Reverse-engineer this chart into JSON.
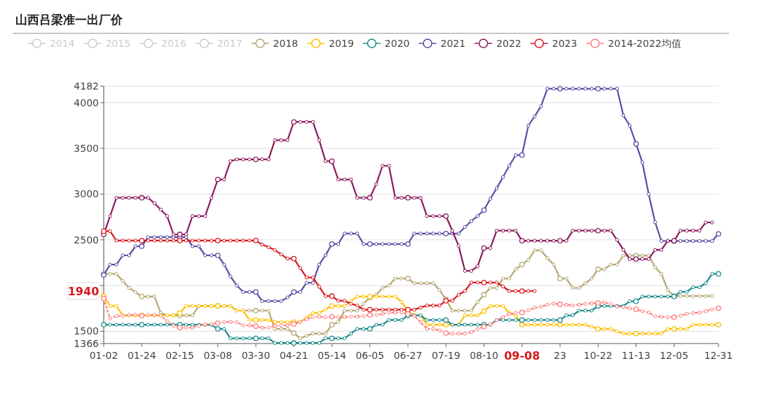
{
  "chart_data": {
    "type": "line",
    "title": "山西吕梁准一出厂价",
    "categories": [
      "01-02",
      null,
      null,
      null,
      null,
      null,
      "01-24",
      null,
      null,
      null,
      null,
      null,
      "02-15",
      null,
      null,
      null,
      null,
      null,
      "03-08",
      null,
      null,
      null,
      null,
      null,
      "03-30",
      null,
      null,
      null,
      null,
      null,
      "04-21",
      null,
      null,
      null,
      null,
      null,
      "05-14",
      null,
      null,
      null,
      null,
      null,
      "06-05",
      null,
      null,
      null,
      null,
      null,
      "06-27",
      null,
      null,
      null,
      null,
      null,
      "07-19",
      null,
      null,
      null,
      null,
      null,
      "08-10",
      null,
      null,
      null,
      null,
      null,
      null,
      null,
      null,
      null,
      null,
      null,
      "23",
      null,
      null,
      null,
      null,
      null,
      "10-22",
      null,
      null,
      null,
      null,
      null,
      "11-13",
      null,
      null,
      null,
      null,
      null,
      "12-05",
      null,
      null,
      null,
      null,
      null,
      null,
      "12-31"
    ],
    "ylim": [
      1366,
      4182
    ],
    "yticks": [
      1366,
      1500,
      {
        "value": 2000,
        "label": null
      },
      2500,
      3000,
      3500,
      4000,
      4182
    ],
    "grid": "y",
    "legend": "top",
    "marker": "circle",
    "annotations": [
      "1940",
      "09-08"
    ],
    "series": [
      {
        "name": "2014",
        "color": "#cccccc",
        "values": [
          null,
          null,
          null,
          null,
          null,
          null,
          null,
          null,
          null,
          null,
          null,
          null,
          null,
          null,
          null,
          null,
          null,
          null,
          null,
          null,
          null,
          null,
          null,
          null,
          null,
          null,
          null,
          null,
          null,
          null,
          null,
          null,
          null,
          null,
          null,
          null,
          null,
          null,
          null,
          null,
          null,
          null,
          null,
          null,
          null,
          null,
          null,
          null,
          null,
          null,
          null,
          null,
          null,
          null,
          null,
          null,
          null,
          null,
          null,
          null,
          null,
          null,
          null,
          null,
          null,
          null,
          null,
          null,
          null,
          null,
          null,
          null,
          null,
          null,
          null,
          null,
          null,
          null,
          null,
          null,
          null,
          null,
          null,
          null,
          null,
          null,
          null,
          null,
          null,
          null,
          null,
          null,
          null,
          null,
          null,
          null,
          null,
          null
        ]
      },
      {
        "name": "2015",
        "color": "#cccccc",
        "values": [
          null,
          null,
          null,
          null,
          null,
          null,
          null,
          null,
          null,
          null,
          null,
          null,
          null,
          null,
          null,
          null,
          null,
          null,
          null,
          null,
          null,
          null,
          null,
          null,
          null,
          null,
          null,
          null,
          null,
          null,
          null,
          null,
          null,
          null,
          null,
          null,
          null,
          null,
          null,
          null,
          null,
          null,
          null,
          null,
          null,
          null,
          null,
          null,
          null,
          null,
          null,
          null,
          null,
          null,
          null,
          null,
          null,
          null,
          null,
          null,
          null,
          null,
          null,
          null,
          null,
          null,
          null,
          null,
          null,
          null,
          null,
          null,
          null,
          null,
          null,
          null,
          null,
          null,
          null,
          null,
          null,
          null,
          null,
          null,
          null,
          null,
          null,
          null,
          null,
          null,
          null,
          null,
          null,
          null,
          null,
          null,
          null,
          null
        ]
      },
      {
        "name": "2016",
        "color": "#cccccc",
        "values": [
          null,
          null,
          null,
          null,
          null,
          null,
          null,
          null,
          null,
          null,
          null,
          null,
          null,
          null,
          null,
          null,
          null,
          null,
          null,
          null,
          null,
          null,
          null,
          null,
          null,
          null,
          null,
          null,
          null,
          null,
          null,
          null,
          null,
          null,
          null,
          null,
          null,
          null,
          null,
          null,
          null,
          null,
          null,
          null,
          null,
          null,
          null,
          null,
          null,
          null,
          null,
          null,
          null,
          null,
          null,
          null,
          null,
          null,
          null,
          null,
          null,
          null,
          null,
          null,
          null,
          null,
          null,
          null,
          null,
          null,
          null,
          null,
          null,
          null,
          null,
          null,
          null,
          null,
          null,
          null,
          null,
          null,
          null,
          null,
          null,
          null,
          null,
          null,
          null,
          null,
          null,
          null,
          null,
          null,
          null,
          null,
          null,
          null
        ]
      },
      {
        "name": "2017",
        "color": "#cccccc",
        "values": [
          null,
          null,
          null,
          null,
          null,
          null,
          null,
          null,
          null,
          null,
          null,
          null,
          null,
          null,
          null,
          null,
          null,
          null,
          null,
          null,
          null,
          null,
          null,
          null,
          null,
          null,
          null,
          null,
          null,
          null,
          null,
          null,
          null,
          null,
          null,
          null,
          null,
          null,
          null,
          null,
          null,
          null,
          null,
          null,
          null,
          null,
          null,
          null,
          null,
          null,
          null,
          null,
          null,
          null,
          null,
          null,
          null,
          null,
          null,
          null,
          null,
          null,
          null,
          null,
          null,
          null,
          null,
          null,
          null,
          null,
          null,
          null,
          null,
          null,
          null,
          null,
          null,
          null,
          null,
          null,
          null,
          null,
          null,
          null,
          null,
          null,
          null,
          null,
          null,
          null,
          null,
          null,
          null,
          null,
          null,
          null,
          null,
          null
        ]
      },
      {
        "name": "2018",
        "color": "#b5a672",
        "values": [
          2128,
          2128,
          2128,
          2050,
          1974,
          1930,
          1880,
          1880,
          1880,
          1700,
          1674,
          1674,
          1674,
          1674,
          1674,
          1777,
          1777,
          1777,
          1777,
          1777,
          1777,
          1726,
          1726,
          1726,
          1726,
          1726,
          1726,
          1526,
          1526,
          1526,
          1480,
          1423,
          1450,
          1474,
          1474,
          1474,
          1572,
          1600,
          1726,
          1726,
          1726,
          1800,
          1870,
          1900,
          1974,
          2000,
          2077,
          2077,
          2077,
          2026,
          2026,
          2026,
          2026,
          1950,
          1850,
          1726,
          1726,
          1726,
          1726,
          1820,
          1900,
          1974,
          1974,
          2077,
          2077,
          2179,
          2230,
          2282,
          2385,
          2385,
          2300,
          2230,
          2077,
          2077,
          1974,
          1974,
          2026,
          2077,
          2179,
          2179,
          2230,
          2230,
          2328,
          2328,
          2328,
          2328,
          2328,
          2200,
          2128,
          1950,
          1885,
          1885,
          1885,
          1885,
          1885,
          1885,
          1885,
          null
        ]
      },
      {
        "name": "2019",
        "color": "#ffc000",
        "values": [
          1885,
          1777,
          1777,
          1674,
          1674,
          1674,
          1674,
          1674,
          1674,
          1674,
          1674,
          1674,
          1700,
          1777,
          1777,
          1777,
          1777,
          1777,
          1777,
          1777,
          1777,
          1726,
          1726,
          1623,
          1623,
          1623,
          1623,
          1600,
          1600,
          1600,
          1600,
          1600,
          1650,
          1700,
          1700,
          1740,
          1777,
          1777,
          1777,
          1830,
          1880,
          1880,
          1880,
          1880,
          1880,
          1880,
          1880,
          1820,
          1720,
          1674,
          1674,
          1572,
          1572,
          1572,
          1572,
          1572,
          1572,
          1674,
          1674,
          1674,
          1720,
          1777,
          1777,
          1777,
          1700,
          1674,
          1572,
          1572,
          1572,
          1572,
          1572,
          1572,
          1572,
          1572,
          1572,
          1572,
          1572,
          1550,
          1526,
          1526,
          1526,
          1500,
          1474,
          1474,
          1474,
          1474,
          1474,
          1474,
          1474,
          1526,
          1526,
          1526,
          1526,
          1572,
          1572,
          1572,
          1572,
          1572
        ]
      },
      {
        "name": "2020",
        "color": "#1b8a8c",
        "values": [
          1572,
          1572,
          1572,
          1572,
          1572,
          1572,
          1572,
          1572,
          1572,
          1572,
          1572,
          1572,
          1572,
          1572,
          1572,
          1572,
          1572,
          1572,
          1526,
          1526,
          1423,
          1423,
          1423,
          1423,
          1423,
          1423,
          1423,
          1372,
          1372,
          1372,
          1372,
          1372,
          1372,
          1372,
          1372,
          1423,
          1423,
          1423,
          1423,
          1474,
          1526,
          1526,
          1526,
          1572,
          1572,
          1623,
          1623,
          1623,
          1674,
          1674,
          1674,
          1623,
          1623,
          1623,
          1623,
          1572,
          1572,
          1572,
          1572,
          1572,
          1572,
          1572,
          1623,
          1623,
          1623,
          1623,
          1623,
          1623,
          1623,
          1623,
          1623,
          1623,
          1623,
          1674,
          1674,
          1726,
          1726,
          1726,
          1777,
          1777,
          1777,
          1777,
          1777,
          1828,
          1828,
          1880,
          1880,
          1880,
          1880,
          1880,
          1880,
          1931,
          1931,
          1982,
          1982,
          2026,
          2128,
          2128
        ]
      },
      {
        "name": "2021",
        "color": "#5b4ba3",
        "values": [
          2115,
          2230,
          2230,
          2330,
          2330,
          2430,
          2430,
          2530,
          2530,
          2530,
          2530,
          2530,
          2530,
          2530,
          2430,
          2430,
          2330,
          2330,
          2330,
          2230,
          2100,
          2000,
          1930,
          1930,
          1930,
          1830,
          1830,
          1830,
          1830,
          1870,
          1930,
          1930,
          2030,
          2030,
          2230,
          2330,
          2454,
          2454,
          2569,
          2569,
          2569,
          2454,
          2454,
          2454,
          2454,
          2454,
          2454,
          2454,
          2454,
          2569,
          2569,
          2569,
          2569,
          2569,
          2569,
          2569,
          2569,
          2640,
          2705,
          2760,
          2825,
          2948,
          3064,
          3187,
          3310,
          3427,
          3427,
          3750,
          3850,
          3961,
          4153,
          4153,
          4153,
          4153,
          4153,
          4153,
          4153,
          4153,
          4153,
          4153,
          4153,
          4153,
          3860,
          3750,
          3550,
          3346,
          3000,
          2694,
          2487,
          2487,
          2487,
          2487,
          2487,
          2487,
          2487,
          2487,
          2487,
          2565
        ]
      },
      {
        "name": "2022",
        "color": "#8b1a5e",
        "values": [
          2560,
          2760,
          2960,
          2960,
          2960,
          2960,
          2960,
          2960,
          2900,
          2830,
          2760,
          2560,
          2560,
          2560,
          2760,
          2760,
          2760,
          2960,
          3160,
          3160,
          3360,
          3380,
          3380,
          3380,
          3380,
          3380,
          3380,
          3590,
          3590,
          3590,
          3790,
          3790,
          3790,
          3790,
          3590,
          3360,
          3360,
          3160,
          3160,
          3160,
          2960,
          2960,
          2960,
          3110,
          3310,
          3310,
          2960,
          2960,
          2960,
          2960,
          2960,
          2760,
          2760,
          2760,
          2760,
          2600,
          2435,
          2160,
          2160,
          2210,
          2410,
          2410,
          2600,
          2600,
          2600,
          2600,
          2490,
          2490,
          2490,
          2490,
          2490,
          2490,
          2490,
          2490,
          2600,
          2600,
          2600,
          2600,
          2600,
          2600,
          2600,
          2500,
          2390,
          2290,
          2290,
          2290,
          2290,
          2390,
          2390,
          2490,
          2490,
          2600,
          2600,
          2600,
          2600,
          2690,
          2690,
          null
        ]
      },
      {
        "name": "2023",
        "color": "#d7191c",
        "values": [
          2595,
          2595,
          2492,
          2492,
          2492,
          2492,
          2492,
          2492,
          2492,
          2492,
          2492,
          2492,
          2492,
          2492,
          2492,
          2492,
          2492,
          2492,
          2492,
          2492,
          2492,
          2492,
          2492,
          2492,
          2492,
          2448,
          2420,
          2389,
          2340,
          2295,
          2295,
          2192,
          2088,
          2088,
          1987,
          1885,
          1885,
          1834,
          1834,
          1800,
          1782,
          1736,
          1736,
          1736,
          1736,
          1736,
          1736,
          1736,
          1736,
          1736,
          1760,
          1782,
          1782,
          1782,
          1834,
          1834,
          1900,
          1940,
          2033,
          2033,
          2033,
          2033,
          2033,
          1990,
          1940,
          1940,
          1940,
          1940,
          1940,
          null,
          null,
          null,
          null,
          null,
          null,
          null,
          null,
          null,
          null,
          null,
          null,
          null,
          null,
          null,
          null,
          null,
          null,
          null,
          null,
          null,
          null,
          null,
          null,
          null,
          null,
          null,
          null,
          null
        ]
      },
      {
        "name": "2014-2022均值",
        "color": "#ff7b7b",
        "line_style": "dotted",
        "values": [
          1859,
          1640,
          1667,
          1667,
          1680,
          1680,
          1670,
          1680,
          1680,
          1670,
          1610,
          1560,
          1540,
          1538,
          1540,
          1560,
          1577,
          1580,
          1590,
          1600,
          1603,
          1600,
          1565,
          1565,
          1555,
          1538,
          1540,
          1560,
          1565,
          1565,
          1580,
          1603,
          1630,
          1654,
          1660,
          1654,
          1660,
          1654,
          1654,
          1660,
          1660,
          1665,
          1680,
          1680,
          1690,
          1705,
          1705,
          1705,
          1690,
          1670,
          1600,
          1526,
          1526,
          1510,
          1480,
          1474,
          1474,
          1474,
          1490,
          1526,
          1550,
          1577,
          1620,
          1654,
          1690,
          1700,
          1705,
          1730,
          1757,
          1770,
          1790,
          1803,
          1795,
          1790,
          1782,
          1790,
          1800,
          1805,
          1810,
          1816,
          1800,
          1770,
          1765,
          1752,
          1740,
          1720,
          1705,
          1665,
          1659,
          1654,
          1654,
          1670,
          1693,
          1700,
          1705,
          1720,
          1740,
          1752
        ]
      }
    ]
  }
}
